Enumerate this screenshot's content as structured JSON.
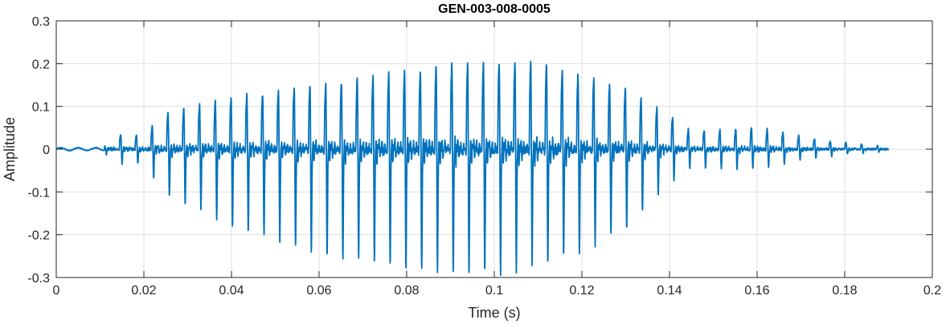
{
  "chart_data": {
    "type": "line",
    "title": "GEN-003-008-0005",
    "xlabel": "Time (s)",
    "ylabel": "Amplitude",
    "xlim": [
      0,
      0.2
    ],
    "ylim": [
      -0.3,
      0.3
    ],
    "xticks": [
      0,
      0.02,
      0.04,
      0.06,
      0.08,
      0.1,
      0.12,
      0.14,
      0.16,
      0.18,
      0.2
    ],
    "xtick_labels": [
      "0",
      "0.02",
      "0.04",
      "0.06",
      "0.08",
      "0.1",
      "0.12",
      "0.14",
      "0.16",
      "0.18",
      "0.2"
    ],
    "yticks": [
      -0.3,
      -0.2,
      -0.1,
      0,
      0.1,
      0.2,
      0.3
    ],
    "ytick_labels": [
      "-0.3",
      "-0.2",
      "-0.1",
      "0",
      "0.1",
      "0.2",
      "0.3"
    ],
    "grid": true,
    "line_color": "#0072BD",
    "series": [
      {
        "x_start": 0,
        "x_end": 0.19,
        "pitch_period": 0.0036,
        "envelope": {
          "t": [
            0,
            0.011,
            0.013,
            0.02,
            0.024,
            0.04,
            0.06,
            0.08,
            0.09,
            0.1,
            0.11,
            0.12,
            0.13,
            0.14,
            0.145,
            0.16,
            0.175,
            0.19
          ],
          "pos": [
            0.003,
            0.005,
            0.035,
            0.03,
            0.08,
            0.12,
            0.15,
            0.18,
            0.2,
            0.2,
            0.2,
            0.17,
            0.14,
            0.08,
            0.04,
            0.05,
            0.02,
            0.005
          ],
          "neg": [
            -0.002,
            -0.005,
            -0.03,
            -0.03,
            -0.09,
            -0.17,
            -0.23,
            -0.26,
            -0.27,
            -0.27,
            -0.25,
            -0.22,
            -0.17,
            -0.07,
            -0.04,
            -0.04,
            -0.015,
            -0.004
          ]
        }
      }
    ]
  }
}
